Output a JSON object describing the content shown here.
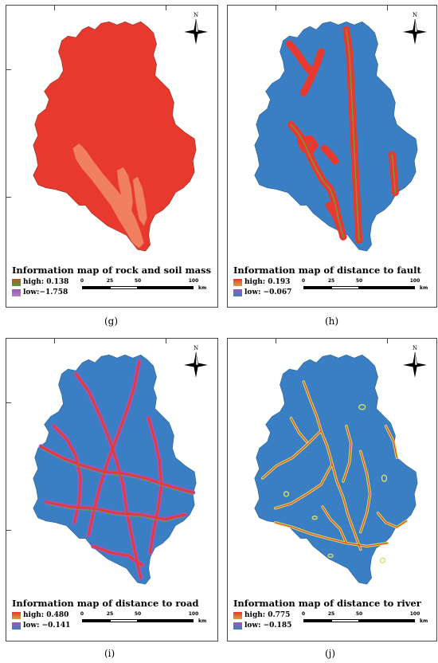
{
  "panels": [
    {
      "id": "g",
      "title": "Information map of rock and soil mass",
      "high": "high: 0.138",
      "low": "low:−1.758",
      "caption": "(g)",
      "base_color": "#e8392e",
      "high_color": "#c2541f",
      "low_color": "#9b59b6"
    },
    {
      "id": "h",
      "title": "Information map of distance to fault",
      "high": "high: 0.193",
      "low": "low: −0.067",
      "caption": "(h)",
      "base_color": "#3a7fc4",
      "high_color": "#e8392e",
      "low_color": "#3a7fc4"
    },
    {
      "id": "i",
      "title": "Information map of distance to road",
      "high": "high: 0.480",
      "low": "low: −0.141",
      "caption": "(i)",
      "base_color": "#3a7fc4",
      "high_color": "#e8392e",
      "low_color": "#3a7fc4"
    },
    {
      "id": "j",
      "title": "Information map of distance to river",
      "high": "high: 0.775",
      "low": "low: −0.185",
      "caption": "(j)",
      "base_color": "#3a7fc4",
      "high_color": "#e8392e",
      "low_color": "#3a7fc4"
    }
  ],
  "scale": {
    "labels": [
      "0",
      "25",
      "50",
      "100"
    ],
    "unit": "km"
  },
  "compass_label": "N"
}
